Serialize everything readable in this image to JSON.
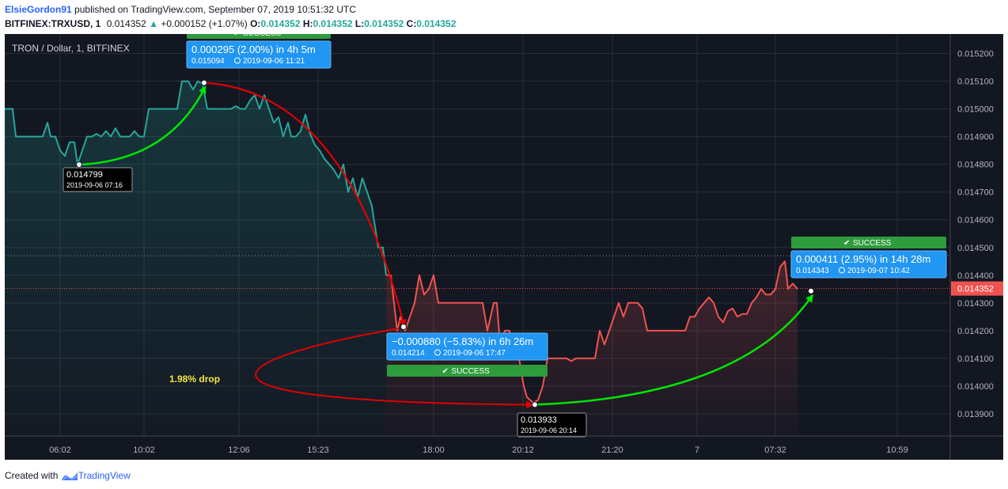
{
  "header": {
    "author": "ElsieGordon91",
    "published_text": "published on TradingView.com, September 07, 2019 10:51:32 UTC",
    "symbol": "BITFINEX:TRXUSD, 1",
    "last_price": "0.014352",
    "change": "+0.000152 (+1.07%)",
    "o_label": "O:",
    "o_value": "0.014352",
    "h_label": "H:",
    "h_value": "0.014352",
    "l_label": "L:",
    "l_value": "0.014352",
    "c_label": "C:",
    "c_value": "0.014352"
  },
  "footer": {
    "created_with": "Created with",
    "brand": "TradingView"
  },
  "chart_data": {
    "type": "line",
    "title": "TRON / Dollar, 1, BITFINEX",
    "ylim": [
      0.01382,
      0.01527
    ],
    "y_ticks": [
      "0.015200",
      "0.015100",
      "0.015000",
      "0.014900",
      "0.014800",
      "0.014700",
      "0.014600",
      "0.014500",
      "0.014400",
      "0.014300",
      "0.014200",
      "0.014100",
      "0.014000",
      "0.013900"
    ],
    "x_ticks": [
      "06:02",
      "10:02",
      "12:06",
      "15:23",
      "18:00",
      "20:12",
      "21:20",
      "7",
      "07:32",
      "10:59"
    ],
    "current_price_label": "0.014352",
    "series": [
      {
        "color": "#26a69a",
        "points": [
          [
            0,
            0.015
          ],
          [
            10,
            0.015
          ],
          [
            14,
            0.0149
          ],
          [
            20,
            0.0149
          ],
          [
            48,
            0.0149
          ],
          [
            54,
            0.01495
          ],
          [
            58,
            0.0149
          ],
          [
            64,
            0.0149
          ],
          [
            70,
            0.01485
          ],
          [
            76,
            0.01483
          ],
          [
            82,
            0.01488
          ],
          [
            88,
            0.01488
          ],
          [
            92,
            0.0148
          ],
          [
            98,
            0.01485
          ],
          [
            104,
            0.0149
          ],
          [
            110,
            0.0149
          ],
          [
            116,
            0.01491
          ],
          [
            122,
            0.0149
          ],
          [
            128,
            0.01492
          ],
          [
            134,
            0.0149
          ],
          [
            140,
            0.01493
          ],
          [
            146,
            0.0149
          ],
          [
            152,
            0.0149
          ],
          [
            158,
            0.0149
          ],
          [
            164,
            0.01492
          ],
          [
            170,
            0.0149
          ],
          [
            176,
            0.0149
          ],
          [
            182,
            0.015
          ],
          [
            192,
            0.015
          ],
          [
            200,
            0.015
          ],
          [
            210,
            0.015
          ],
          [
            218,
            0.015
          ],
          [
            224,
            0.0151
          ],
          [
            232,
            0.0151
          ],
          [
            238,
            0.01507
          ],
          [
            244,
            0.0151
          ],
          [
            250,
            0.01509
          ],
          [
            256,
            0.015
          ],
          [
            262,
            0.015
          ],
          [
            270,
            0.015
          ],
          [
            280,
            0.015
          ],
          [
            286,
            0.015
          ],
          [
            292,
            0.01501
          ],
          [
            298,
            0.015
          ],
          [
            304,
            0.015
          ],
          [
            310,
            0.01503
          ],
          [
            316,
            0.01505
          ],
          [
            322,
            0.015
          ],
          [
            328,
            0.01505
          ],
          [
            334,
            0.015
          ],
          [
            340,
            0.01495
          ],
          [
            346,
            0.01497
          ],
          [
            352,
            0.0149
          ],
          [
            358,
            0.01495
          ],
          [
            362,
            0.0149
          ],
          [
            368,
            0.0149
          ],
          [
            374,
            0.01492
          ],
          [
            380,
            0.01498
          ],
          [
            386,
            0.01491
          ],
          [
            392,
            0.01487
          ],
          [
            398,
            0.01485
          ],
          [
            404,
            0.01482
          ],
          [
            410,
            0.0148
          ],
          [
            416,
            0.01478
          ],
          [
            422,
            0.01475
          ],
          [
            428,
            0.0148
          ],
          [
            434,
            0.0147
          ],
          [
            440,
            0.01475
          ],
          [
            446,
            0.01468
          ],
          [
            452,
            0.01475
          ],
          [
            458,
            0.0147
          ],
          [
            464,
            0.01465
          ],
          [
            472,
            0.0145
          ],
          [
            478,
            0.0145
          ],
          [
            482,
            0.0144
          ]
        ]
      },
      {
        "color": "#ef5350",
        "points": [
          [
            482,
            0.0144
          ],
          [
            488,
            0.0144
          ],
          [
            492,
            0.0143
          ],
          [
            496,
            0.0142
          ],
          [
            500,
            0.01425
          ],
          [
            506,
            0.0142
          ],
          [
            512,
            0.01425
          ],
          [
            518,
            0.0143
          ],
          [
            524,
            0.0144
          ],
          [
            530,
            0.01433
          ],
          [
            536,
            0.01435
          ],
          [
            542,
            0.0144
          ],
          [
            548,
            0.0143
          ],
          [
            554,
            0.0143
          ],
          [
            560,
            0.0143
          ],
          [
            566,
            0.0143
          ],
          [
            572,
            0.0143
          ],
          [
            580,
            0.0143
          ],
          [
            586,
            0.0143
          ],
          [
            592,
            0.0143
          ],
          [
            598,
            0.0143
          ],
          [
            604,
            0.0143
          ],
          [
            610,
            0.0142
          ],
          [
            614,
            0.01425
          ],
          [
            618,
            0.0143
          ],
          [
            622,
            0.0143
          ],
          [
            626,
            0.01415
          ],
          [
            632,
            0.0142
          ],
          [
            638,
            0.0142
          ],
          [
            644,
            0.0141
          ],
          [
            650,
            0.0141
          ],
          [
            656,
            0.014
          ],
          [
            660,
            0.01396
          ],
          [
            664,
            0.01395
          ],
          [
            668,
            0.01394
          ],
          [
            674,
            0.01395
          ],
          [
            680,
            0.014
          ],
          [
            686,
            0.0141
          ],
          [
            692,
            0.0141
          ],
          [
            698,
            0.0141
          ],
          [
            704,
            0.0141
          ],
          [
            710,
            0.0141
          ],
          [
            716,
            0.01409
          ],
          [
            722,
            0.0141
          ],
          [
            728,
            0.0141
          ],
          [
            734,
            0.0141
          ],
          [
            740,
            0.0141
          ],
          [
            746,
            0.0141
          ],
          [
            752,
            0.0142
          ],
          [
            758,
            0.01415
          ],
          [
            764,
            0.0142
          ],
          [
            770,
            0.01425
          ],
          [
            776,
            0.0143
          ],
          [
            782,
            0.01425
          ],
          [
            788,
            0.0143
          ],
          [
            794,
            0.0143
          ],
          [
            800,
            0.0143
          ],
          [
            806,
            0.01428
          ],
          [
            812,
            0.0142
          ],
          [
            818,
            0.0142
          ],
          [
            824,
            0.0142
          ],
          [
            830,
            0.0142
          ],
          [
            836,
            0.0142
          ],
          [
            842,
            0.0142
          ],
          [
            848,
            0.0142
          ],
          [
            854,
            0.0142
          ],
          [
            860,
            0.0142
          ],
          [
            866,
            0.01425
          ],
          [
            872,
            0.01425
          ],
          [
            878,
            0.01428
          ],
          [
            884,
            0.0143
          ],
          [
            890,
            0.01432
          ],
          [
            896,
            0.0143
          ],
          [
            902,
            0.01425
          ],
          [
            908,
            0.01423
          ],
          [
            914,
            0.01427
          ],
          [
            920,
            0.01428
          ],
          [
            926,
            0.01425
          ],
          [
            932,
            0.01426
          ],
          [
            938,
            0.01426
          ],
          [
            944,
            0.0143
          ],
          [
            950,
            0.01432
          ],
          [
            956,
            0.01435
          ],
          [
            962,
            0.01433
          ],
          [
            968,
            0.01433
          ],
          [
            974,
            0.01435
          ],
          [
            980,
            0.01443
          ],
          [
            986,
            0.01445
          ],
          [
            990,
            0.01435
          ],
          [
            996,
            0.01437
          ],
          [
            1002,
            0.01435
          ]
        ]
      }
    ],
    "markers": [
      {
        "price": "0.014799",
        "time": "2019-09-06 07:16",
        "value": 0.014799
      },
      {
        "price": "0.013933",
        "time": "2019-09-06 20:14",
        "value": 0.013933
      }
    ],
    "annotations": [
      {
        "title": "0.000295 (2.00%) in 4h 5m",
        "price": "0.015094",
        "time": "2019-09-06 11:21",
        "status": "SUCCESS"
      },
      {
        "title": "−0.000880 (−5.83%) in 6h 26m",
        "price": "0.014214",
        "time": "2019-09-06 17:47",
        "status": "SUCCESS"
      },
      {
        "title": "0.000411 (2.95%) in 14h 28m",
        "price": "0.014343",
        "time": "2019-09-07 10:42",
        "status": "SUCCESS"
      }
    ],
    "drop_label": "1.98% drop"
  }
}
